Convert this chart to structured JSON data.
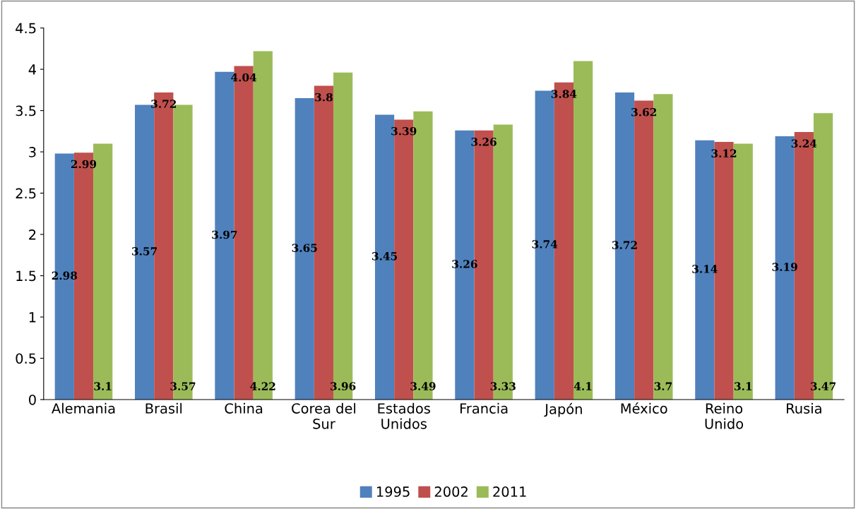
{
  "chart_data": {
    "type": "bar",
    "categories": [
      "Alemania",
      "Brasil",
      "China",
      "Corea del Sur",
      "Estados Unidos",
      "Francia",
      "Japón",
      "México",
      "Reino Unido",
      "Rusia"
    ],
    "series": [
      {
        "name": "1995",
        "color": "#4f81bd",
        "values": [
          2.98,
          3.57,
          3.97,
          3.65,
          3.45,
          3.26,
          3.74,
          3.72,
          3.14,
          3.19
        ]
      },
      {
        "name": "2002",
        "color": "#c0504d",
        "values": [
          2.99,
          3.72,
          4.04,
          3.8,
          3.39,
          3.26,
          3.84,
          3.62,
          3.12,
          3.24
        ]
      },
      {
        "name": "2011",
        "color": "#9bbb59",
        "values": [
          3.1,
          3.57,
          4.22,
          3.96,
          3.49,
          3.33,
          4.1,
          3.7,
          3.1,
          3.47
        ]
      }
    ],
    "ylim": [
      0,
      4.5
    ],
    "yticks": [
      0,
      0.5,
      1,
      1.5,
      2,
      2.5,
      3,
      3.5,
      4,
      4.5
    ],
    "data_labels": true,
    "legend": "bottom",
    "grid": false
  }
}
